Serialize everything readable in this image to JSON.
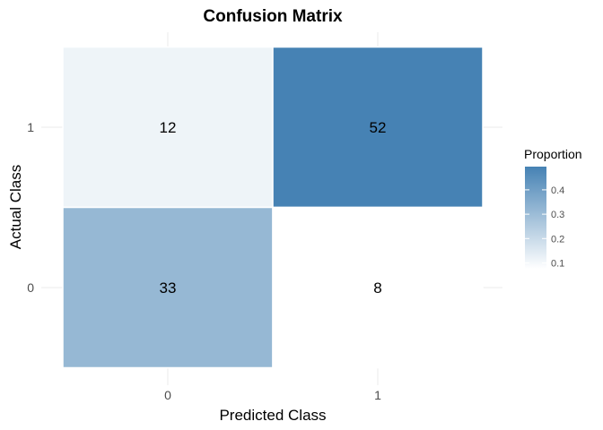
{
  "chart_data": {
    "type": "heatmap",
    "title": "Confusion Matrix",
    "xlabel": "Predicted Class",
    "ylabel": "Actual Class",
    "x_categories": [
      "0",
      "1"
    ],
    "y_categories": [
      "0",
      "1"
    ],
    "cells": [
      {
        "predicted": "0",
        "actual": "1",
        "count": 12,
        "proportion": 0.1143
      },
      {
        "predicted": "1",
        "actual": "1",
        "count": 52,
        "proportion": 0.4952
      },
      {
        "predicted": "0",
        "actual": "0",
        "count": 33,
        "proportion": 0.3143
      },
      {
        "predicted": "1",
        "actual": "0",
        "count": 8,
        "proportion": 0.0762
      }
    ],
    "legend": {
      "title": "Proportion",
      "ticks": [
        0.1,
        0.2,
        0.3,
        0.4
      ],
      "tick_labels": [
        "0.1",
        "0.2",
        "0.3",
        "0.4"
      ],
      "range": [
        0.0762,
        0.4952
      ],
      "low_color": "#ffffff",
      "high_color": "#4682b4"
    },
    "grid": true,
    "legend_position": "right"
  }
}
